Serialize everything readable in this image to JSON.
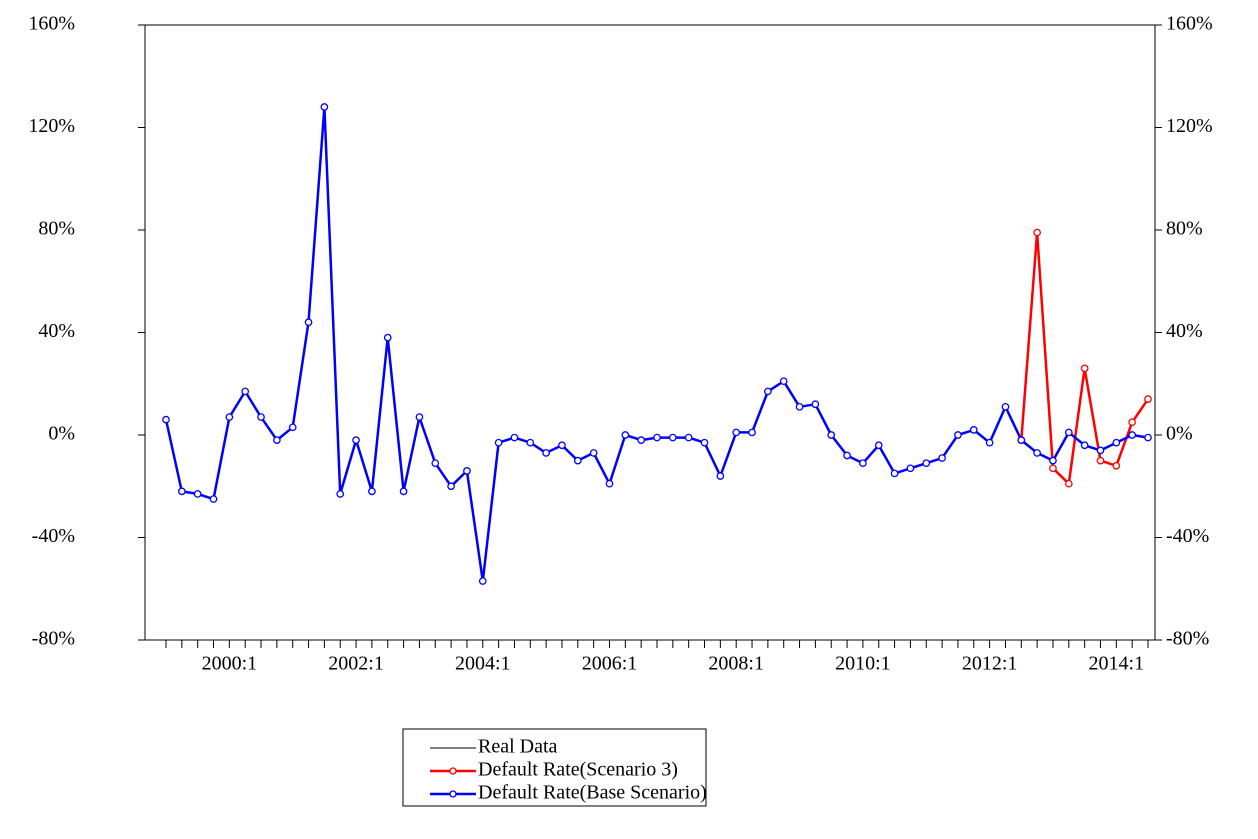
{
  "chart_data": {
    "type": "line",
    "categories": [
      null,
      null,
      null,
      null,
      "2000:1",
      null,
      null,
      null,
      null,
      null,
      null,
      null,
      "2002:1",
      null,
      null,
      null,
      null,
      null,
      null,
      null,
      "2004:1",
      null,
      null,
      null,
      null,
      null,
      null,
      null,
      "2006:1",
      null,
      null,
      null,
      null,
      null,
      null,
      null,
      "2008:1",
      null,
      null,
      null,
      null,
      null,
      null,
      null,
      "2010:1",
      null,
      null,
      null,
      null,
      null,
      null,
      null,
      "2012:1",
      null,
      null,
      null,
      null,
      null,
      null,
      null,
      "2014:1",
      null,
      null
    ],
    "series": [
      {
        "name": "Real Data",
        "color": "#000000",
        "marker": false,
        "values": [
          6,
          -22,
          -23,
          -25,
          7,
          17,
          7,
          -2,
          3,
          44,
          128,
          -23,
          -2,
          -22,
          38,
          -22,
          7,
          -11,
          -20,
          -14,
          -57,
          -3,
          -1,
          -3,
          -7,
          -4,
          -10,
          -7,
          -19,
          0,
          -2,
          -1,
          -1,
          -1,
          -3,
          -16,
          1,
          1,
          17,
          21,
          11,
          12,
          0,
          -8,
          -11,
          -4,
          -15,
          -13,
          -11,
          -9,
          0,
          2,
          -3,
          11,
          -2,
          null,
          null,
          null,
          null,
          null,
          null,
          null,
          null
        ]
      },
      {
        "name": "Default Rate(Scenario 3)",
        "color": "#ff0000",
        "marker": true,
        "values": [
          null,
          null,
          null,
          null,
          null,
          null,
          null,
          null,
          null,
          null,
          null,
          null,
          null,
          null,
          null,
          null,
          null,
          null,
          null,
          null,
          null,
          null,
          null,
          null,
          null,
          null,
          null,
          null,
          null,
          null,
          null,
          null,
          null,
          null,
          null,
          null,
          null,
          null,
          null,
          null,
          null,
          null,
          null,
          null,
          null,
          null,
          null,
          null,
          null,
          null,
          null,
          null,
          null,
          null,
          -2,
          79,
          -13,
          -19,
          26,
          -10,
          -12,
          5,
          14
        ]
      },
      {
        "name": "Default Rate(Base Scenario)",
        "color": "#0000ff",
        "marker": true,
        "values": [
          6,
          -22,
          -23,
          -25,
          7,
          17,
          7,
          -2,
          3,
          44,
          128,
          -23,
          -2,
          -22,
          38,
          -22,
          7,
          -11,
          -20,
          -14,
          -57,
          -3,
          -1,
          -3,
          -7,
          -4,
          -10,
          -7,
          -19,
          0,
          -2,
          -1,
          -1,
          -1,
          -3,
          -16,
          1,
          1,
          17,
          21,
          11,
          12,
          0,
          -8,
          -11,
          -4,
          -15,
          -13,
          -11,
          -9,
          0,
          2,
          -3,
          11,
          -2,
          -7,
          -10,
          1,
          -4,
          -6,
          -3,
          0,
          -1
        ]
      }
    ],
    "ylim": [
      -80,
      160
    ],
    "yticks": [
      {
        "value": -80,
        "label": "-80%"
      },
      {
        "value": -40,
        "label": "-40%"
      },
      {
        "value": 0,
        "label": "0%"
      },
      {
        "value": 40,
        "label": "40%"
      },
      {
        "value": 80,
        "label": "80%"
      },
      {
        "value": 120,
        "label": "120%"
      },
      {
        "value": 160,
        "label": "160%"
      }
    ],
    "y2lim": [
      -80,
      160
    ],
    "y2ticks": [
      {
        "value": -80,
        "label": "-80%"
      },
      {
        "value": -40,
        "label": "-40%"
      },
      {
        "value": 0,
        "label": "0%"
      },
      {
        "value": 40,
        "label": "40%"
      },
      {
        "value": 80,
        "label": "80%"
      },
      {
        "value": 120,
        "label": "120%"
      },
      {
        "value": 160,
        "label": "160%"
      }
    ],
    "grid": false,
    "legend": "bottom"
  }
}
